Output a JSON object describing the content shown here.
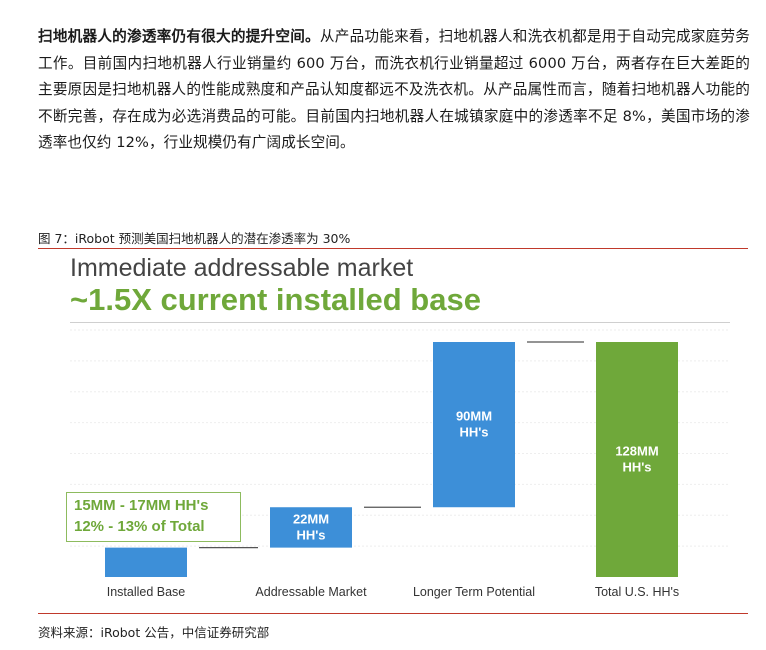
{
  "paragraph": {
    "lead": "扫地机器人的渗透率仍有很大的提升空间。",
    "body": "从产品功能来看，扫地机器人和洗衣机都是用于自动完成家庭劳务工作。目前国内扫地机器人行业销量约 600 万台，而洗衣机行业销量超过 6000 万台，两者存在巨大差距的主要原因是扫地机器人的性能成熟度和产品认知度都远不及洗衣机。从产品属性而言，随着扫地机器人功能的不断完善，存在成为必选消费品的可能。目前国内扫地机器人在城镇家庭中的渗透率不足 8%，美国市场的渗透率也仅约 12%，行业规模仍有广阔成长空间。"
  },
  "figure_caption": "图 7：iRobot 预测美国扫地机器人的潜在渗透率为 30%",
  "source": "资料来源：iRobot 公告，中信证券研究部",
  "chart_data": {
    "type": "bar",
    "subtype": "waterfall",
    "title": "Immediate addressable market",
    "subtitle": "~1.5X current installed base",
    "categories": [
      "Installed Base",
      "Addressable Market",
      "Longer Term Potential",
      "Total U.S. HH's"
    ],
    "values_mm_households": [
      16,
      22,
      90,
      128
    ],
    "bar_base_mm_households": [
      0,
      16,
      38,
      0
    ],
    "data_labels": [
      "",
      "22MM\nHH's",
      "90MM\nHH's",
      "128MM\nHH's"
    ],
    "colors": [
      "#3d8fd8",
      "#3d8fd8",
      "#3d8fd8",
      "#6fa83a"
    ],
    "annotation": {
      "line1": "15MM - 17MM HH's",
      "line2": "12% - 13% of Total"
    },
    "ylim": [
      0,
      128
    ],
    "grid": true
  }
}
